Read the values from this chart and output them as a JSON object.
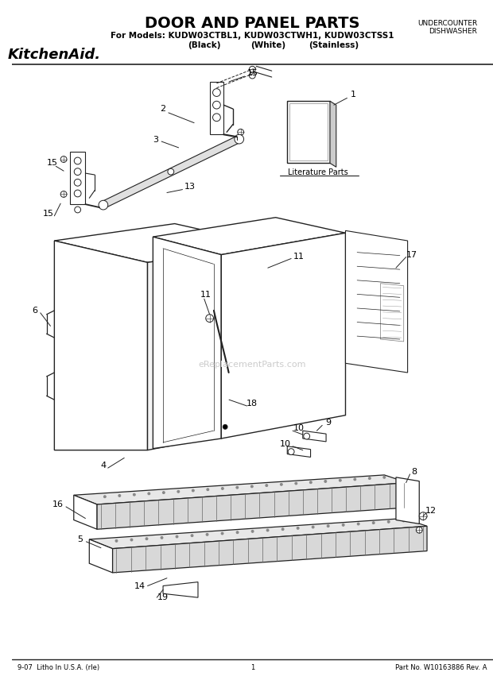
{
  "title": "DOOR AND PANEL PARTS",
  "subtitle_line1": "For Models: KUDW03CTBL1, KUDW03CTWH1, KUDW03CTSS1",
  "subtitle_line2_black": "(Black)",
  "subtitle_line2_white": "(White)",
  "subtitle_line2_stainless": "(Stainless)",
  "brand": "KitchenAid.",
  "top_right_line1": "UNDERCOUNTER",
  "top_right_line2": "DISHWASHER",
  "footer_left": "9-07  Litho In U.S.A. (rle)",
  "footer_center": "1",
  "footer_right": "Part No. W10163886 Rev. A",
  "watermark": "eReplacementParts.com",
  "bg_color": "#ffffff",
  "line_color": "#222222",
  "gray_color": "#aaaaaa",
  "literature_parts_text": "Literature Parts"
}
